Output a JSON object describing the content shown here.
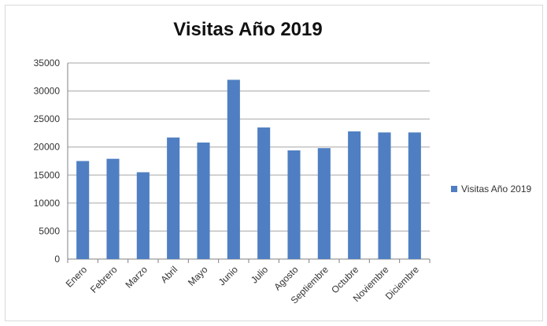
{
  "chart_data": {
    "type": "bar",
    "title": "Visitas Año 2019",
    "categories": [
      "Enero",
      "Febrero",
      "Marzo",
      "Abril",
      "Mayo",
      "Junio",
      "Julio",
      "Agosto",
      "Septiembre",
      "Octubre",
      "Noviembre",
      "Diciembre"
    ],
    "series": [
      {
        "name": "Visitas Año 2019",
        "values": [
          17500,
          17900,
          15500,
          21700,
          20800,
          32000,
          23500,
          19400,
          19800,
          22800,
          22600,
          22600
        ]
      }
    ],
    "ylim": [
      0,
      35000
    ],
    "yticks": [
      0,
      5000,
      10000,
      15000,
      20000,
      25000,
      30000,
      35000
    ],
    "grid": true,
    "legend_position": "right",
    "colors": {
      "bar": "#4f7fc2",
      "grid": "#a6a6a6",
      "axis": "#808080"
    }
  }
}
